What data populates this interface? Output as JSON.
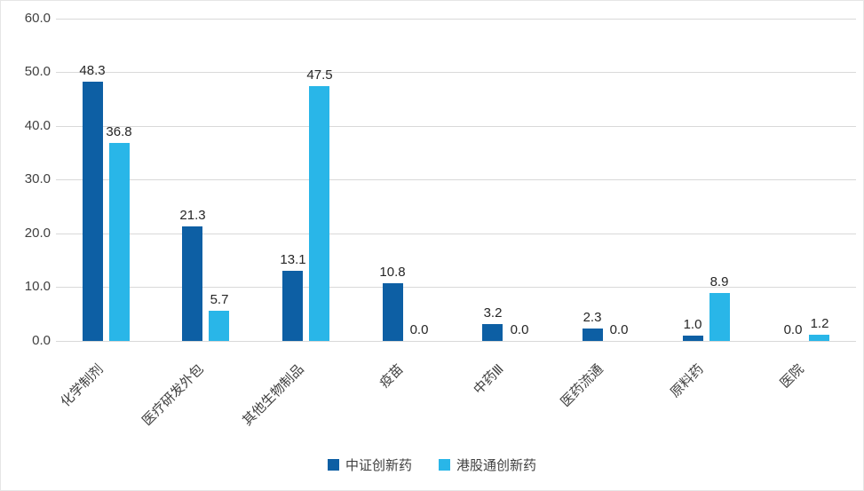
{
  "chart_data": {
    "type": "bar",
    "title": "",
    "categories": [
      "化学制剂",
      "医疗研发外包",
      "其他生物制品",
      "疫苗",
      "中药Ⅲ",
      "医药流通",
      "原料药",
      "医院"
    ],
    "series": [
      {
        "name": "中证创新药",
        "values": [
          48.3,
          21.3,
          13.1,
          10.8,
          3.2,
          2.3,
          1.0,
          0.0
        ]
      },
      {
        "name": "港股通创新药",
        "values": [
          36.8,
          5.7,
          47.5,
          0.0,
          0.0,
          0.0,
          8.9,
          1.2
        ]
      }
    ],
    "xlabel": "",
    "ylabel": "",
    "ylim": [
      0,
      60
    ],
    "ytick_step": 10,
    "ytick_labels": [
      "0.0",
      "10.0",
      "20.0",
      "30.0",
      "40.0",
      "50.0",
      "60.0"
    ],
    "grid": true,
    "legend_position": "bottom"
  },
  "colors": {
    "series": [
      "#0d5fa4",
      "#29b6e8"
    ],
    "grid": "#d9d9d9",
    "text": "#404040",
    "value_label": "#262626"
  }
}
